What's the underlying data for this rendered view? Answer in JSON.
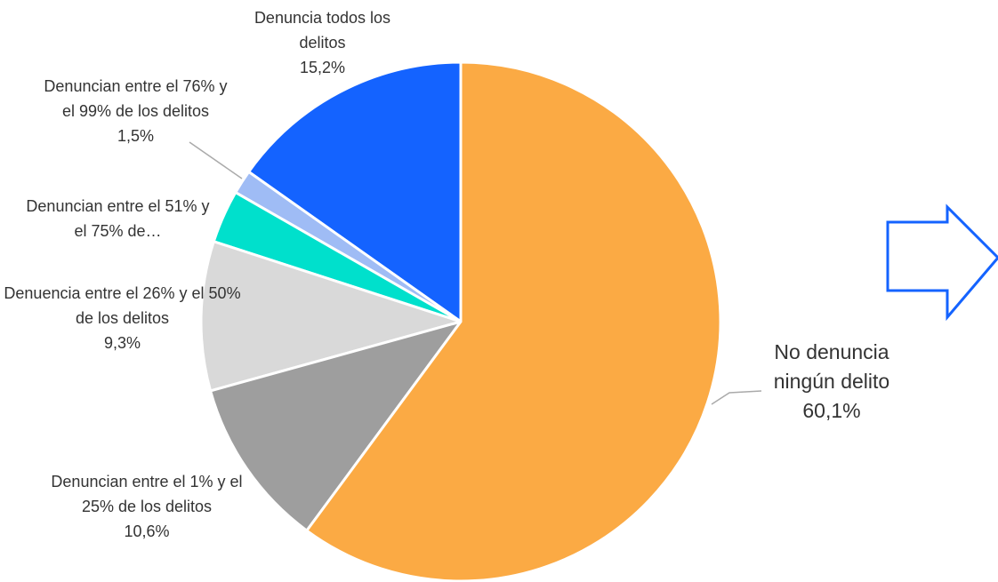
{
  "chart_data": {
    "type": "pie",
    "categories": [
      "No denuncia ningún delito",
      "Denuncian entre el 1% y el 25% de los delitos",
      "Denuencia entre el 26% y el 50% de los delitos",
      "Denuncian entre el 51% y el 75% de…",
      "Denuncian entre el 76% y el 99% de los delitos",
      "Denuncia todos los delitos"
    ],
    "values": [
      60.1,
      10.6,
      9.3,
      3.3,
      1.5,
      15.2
    ],
    "value_labels": [
      "60,1%",
      "10,6%",
      "9,3%",
      null,
      "1,5%",
      "15,2%"
    ],
    "colors": [
      "#fbaa44",
      "#9e9e9e",
      "#d9d9d9",
      "#00e0cc",
      "#9fbcf5",
      "#1463ff"
    ]
  }
}
